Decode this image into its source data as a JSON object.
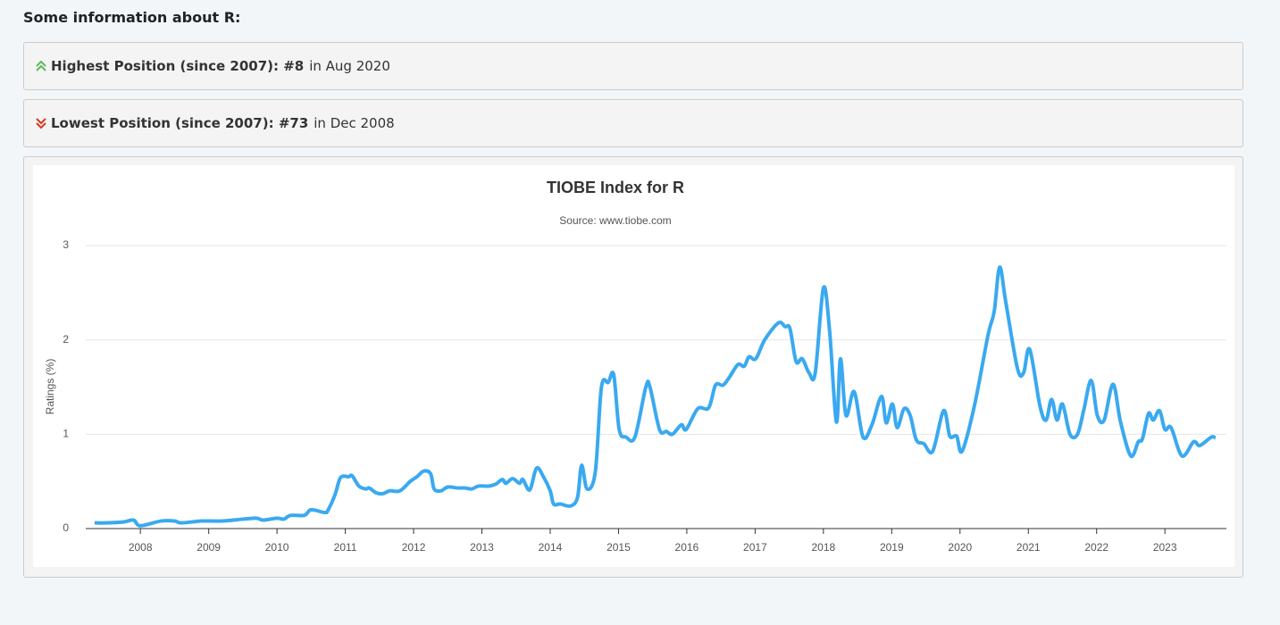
{
  "heading": "Some information about R:",
  "highest": {
    "label": "Highest Position (since 2007): #8",
    "detail": "in Aug 2020"
  },
  "lowest": {
    "label": "Lowest Position (since 2007): #73",
    "detail": "in Dec 2008"
  },
  "chart_data": {
    "type": "line",
    "title": "TIOBE Index for R",
    "subtitle": "Source: www.tiobe.com",
    "y_label": "Ratings (%)",
    "x": [
      2007.33,
      2007.5,
      2007.75,
      2007.9,
      2008.0,
      2008.3,
      2008.5,
      2008.6,
      2008.9,
      2009.2,
      2009.5,
      2009.7,
      2009.8,
      2010.0,
      2010.1,
      2010.2,
      2010.4,
      2010.5,
      2010.7,
      2010.75,
      2010.85,
      2010.93,
      2011.05,
      2011.1,
      2011.2,
      2011.3,
      2011.35,
      2011.45,
      2011.55,
      2011.65,
      2011.8,
      2011.95,
      2012.05,
      2012.15,
      2012.25,
      2012.3,
      2012.4,
      2012.5,
      2012.65,
      2012.75,
      2012.85,
      2012.95,
      2013.1,
      2013.2,
      2013.3,
      2013.35,
      2013.45,
      2013.55,
      2013.6,
      2013.7,
      2013.8,
      2013.9,
      2014.0,
      2014.05,
      2014.15,
      2014.3,
      2014.4,
      2014.46,
      2014.54,
      2014.66,
      2014.75,
      2014.85,
      2014.93,
      2015.01,
      2015.11,
      2015.24,
      2015.4,
      2015.46,
      2015.6,
      2015.7,
      2015.79,
      2015.92,
      2015.99,
      2016.16,
      2016.32,
      2016.42,
      2016.53,
      2016.62,
      2016.75,
      2016.84,
      2016.91,
      2017.01,
      2017.14,
      2017.34,
      2017.44,
      2017.51,
      2017.6,
      2017.69,
      2017.79,
      2017.88,
      2018.0,
      2018.09,
      2018.19,
      2018.25,
      2018.33,
      2018.45,
      2018.58,
      2018.71,
      2018.85,
      2018.92,
      2019.01,
      2019.08,
      2019.18,
      2019.27,
      2019.36,
      2019.47,
      2019.6,
      2019.76,
      2019.85,
      2019.95,
      2020.03,
      2020.21,
      2020.41,
      2020.5,
      2020.58,
      2020.67,
      2020.84,
      2020.93,
      2021.02,
      2021.17,
      2021.26,
      2021.34,
      2021.42,
      2021.5,
      2021.61,
      2021.72,
      2021.81,
      2021.92,
      2022.01,
      2022.11,
      2022.24,
      2022.35,
      2022.5,
      2022.61,
      2022.67,
      2022.76,
      2022.83,
      2022.92,
      2023.0,
      2023.09,
      2023.25,
      2023.42,
      2023.51,
      2023.68,
      2023.74
    ],
    "series": [
      {
        "name": "R",
        "color": "#3aa9f0",
        "values": [
          0.06,
          0.06,
          0.07,
          0.09,
          0.03,
          0.08,
          0.08,
          0.06,
          0.08,
          0.08,
          0.1,
          0.11,
          0.09,
          0.11,
          0.1,
          0.14,
          0.14,
          0.2,
          0.17,
          0.2,
          0.36,
          0.54,
          0.55,
          0.56,
          0.45,
          0.42,
          0.43,
          0.38,
          0.37,
          0.4,
          0.4,
          0.5,
          0.55,
          0.61,
          0.58,
          0.42,
          0.4,
          0.44,
          0.43,
          0.43,
          0.42,
          0.45,
          0.45,
          0.47,
          0.52,
          0.48,
          0.53,
          0.48,
          0.52,
          0.41,
          0.64,
          0.55,
          0.4,
          0.26,
          0.26,
          0.24,
          0.33,
          0.67,
          0.42,
          0.6,
          1.5,
          1.55,
          1.63,
          1.05,
          0.97,
          0.97,
          1.5,
          1.5,
          1.05,
          1.03,
          1.0,
          1.1,
          1.05,
          1.27,
          1.28,
          1.52,
          1.52,
          1.6,
          1.74,
          1.72,
          1.82,
          1.8,
          2.0,
          2.18,
          2.14,
          2.12,
          1.77,
          1.8,
          1.65,
          1.65,
          2.55,
          2.1,
          1.13,
          1.8,
          1.2,
          1.45,
          0.97,
          1.1,
          1.4,
          1.12,
          1.32,
          1.07,
          1.27,
          1.2,
          0.94,
          0.9,
          0.82,
          1.25,
          0.98,
          0.98,
          0.82,
          1.3,
          2.05,
          2.3,
          2.77,
          2.4,
          1.7,
          1.65,
          1.9,
          1.3,
          1.15,
          1.37,
          1.15,
          1.32,
          1.0,
          1.0,
          1.25,
          1.57,
          1.2,
          1.15,
          1.53,
          1.13,
          0.77,
          0.92,
          0.95,
          1.22,
          1.15,
          1.25,
          1.05,
          1.07,
          0.77,
          0.92,
          0.88,
          0.97,
          0.96
        ]
      }
    ],
    "xlim": [
      2007.2,
      2023.9
    ],
    "xticks": [
      2008,
      2009,
      2010,
      2011,
      2012,
      2013,
      2014,
      2015,
      2016,
      2017,
      2018,
      2019,
      2020,
      2021,
      2022,
      2023
    ],
    "ylim": [
      0,
      3
    ],
    "yticks": [
      0,
      1,
      2,
      3
    ],
    "grid": true
  }
}
